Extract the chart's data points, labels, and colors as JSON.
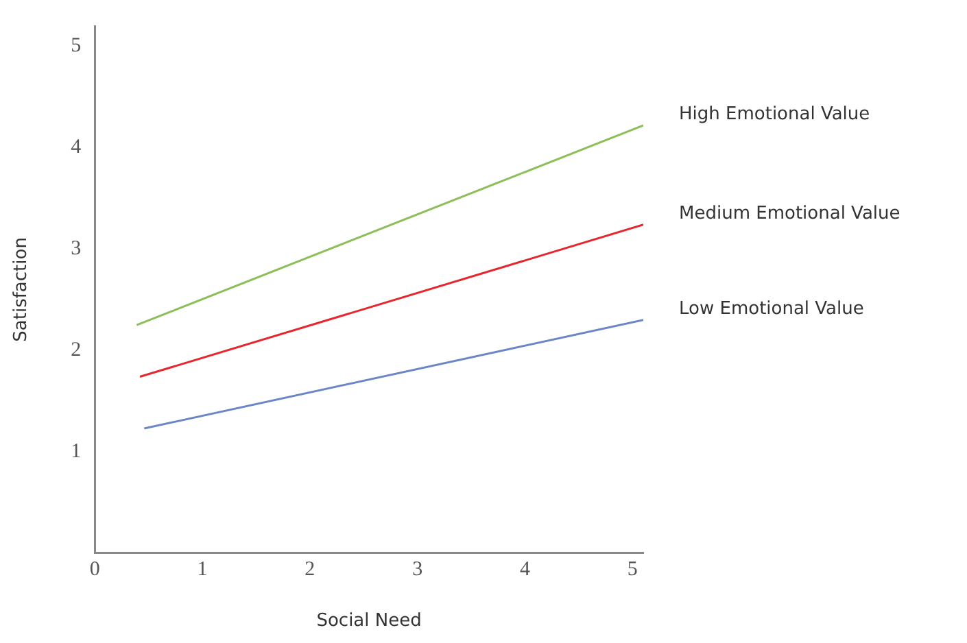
{
  "chart_data": {
    "type": "line",
    "xlabel": "Social Need",
    "ylabel": "Satisfaction",
    "xlim": [
      0,
      5.1
    ],
    "xticks": [
      0,
      1,
      2,
      3,
      4,
      5
    ],
    "ylim": [
      0,
      5.2
    ],
    "yticks": [
      1,
      2,
      3,
      4,
      5
    ],
    "grid": false,
    "legend": false,
    "marker": "none",
    "line_style": "solid",
    "series": [
      {
        "name": "High Emotional Value",
        "color": "#8cbf5a",
        "x": [
          0.39,
          5.1
        ],
        "values": [
          2.25,
          4.22
        ]
      },
      {
        "name": "Medium Emotional Value",
        "color": "#e8262e",
        "x": [
          0.42,
          5.1
        ],
        "values": [
          1.74,
          3.24
        ]
      },
      {
        "name": "Low Emotional Value",
        "color": "#6b86c8",
        "x": [
          0.46,
          5.1
        ],
        "values": [
          1.23,
          2.3
        ]
      }
    ]
  }
}
